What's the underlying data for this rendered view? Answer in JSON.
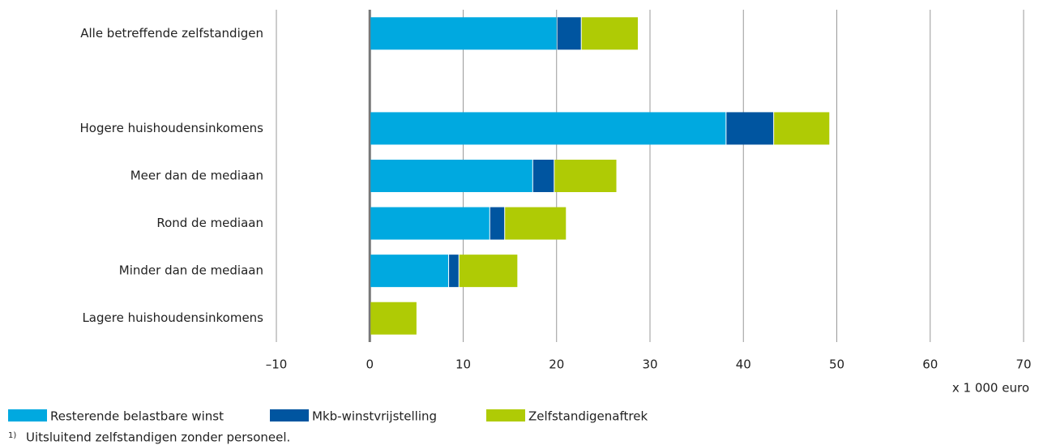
{
  "chart_data": {
    "type": "bar",
    "orientation": "horizontal",
    "stacked": true,
    "categories": [
      "Alle betreffende zelfstandigen",
      null,
      "Hogere huishoudensinkomens",
      "Meer dan de mediaan",
      "Rond de mediaan",
      "Minder dan de mediaan",
      "Lagere huishoudensinkomens"
    ],
    "series": [
      {
        "name": "Resterende belastbare winst",
        "color": "#00a9e0",
        "values": [
          20.0,
          null,
          38.1,
          17.4,
          12.8,
          8.4,
          0
        ]
      },
      {
        "name": "Mkb-winstvrijstelling",
        "color": "#0055a0",
        "values": [
          2.6,
          null,
          5.1,
          2.3,
          1.6,
          1.1,
          0
        ]
      },
      {
        "name": "Zelfstandigenaftrek",
        "color": "#afcb05",
        "values": [
          6.1,
          null,
          6.0,
          6.7,
          6.6,
          6.3,
          5.0
        ]
      }
    ],
    "xlim": [
      -10,
      70
    ],
    "xticks": [
      {
        "value": -10,
        "label": "–10"
      },
      0,
      10,
      20,
      30,
      40,
      50,
      60,
      70
    ],
    "xlabel": "x 1 000 euro",
    "grid": true,
    "footnote_marker": "1)",
    "footnote": "Uitsluitend zelfstandigen zonder personeel."
  }
}
